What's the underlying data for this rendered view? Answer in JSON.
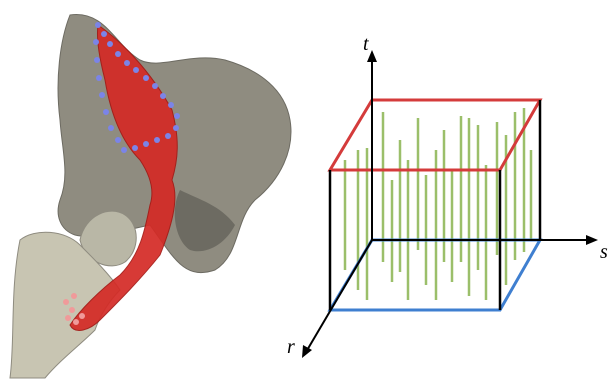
{
  "axes": {
    "t": "t",
    "s": "s",
    "r": "r"
  }
}
